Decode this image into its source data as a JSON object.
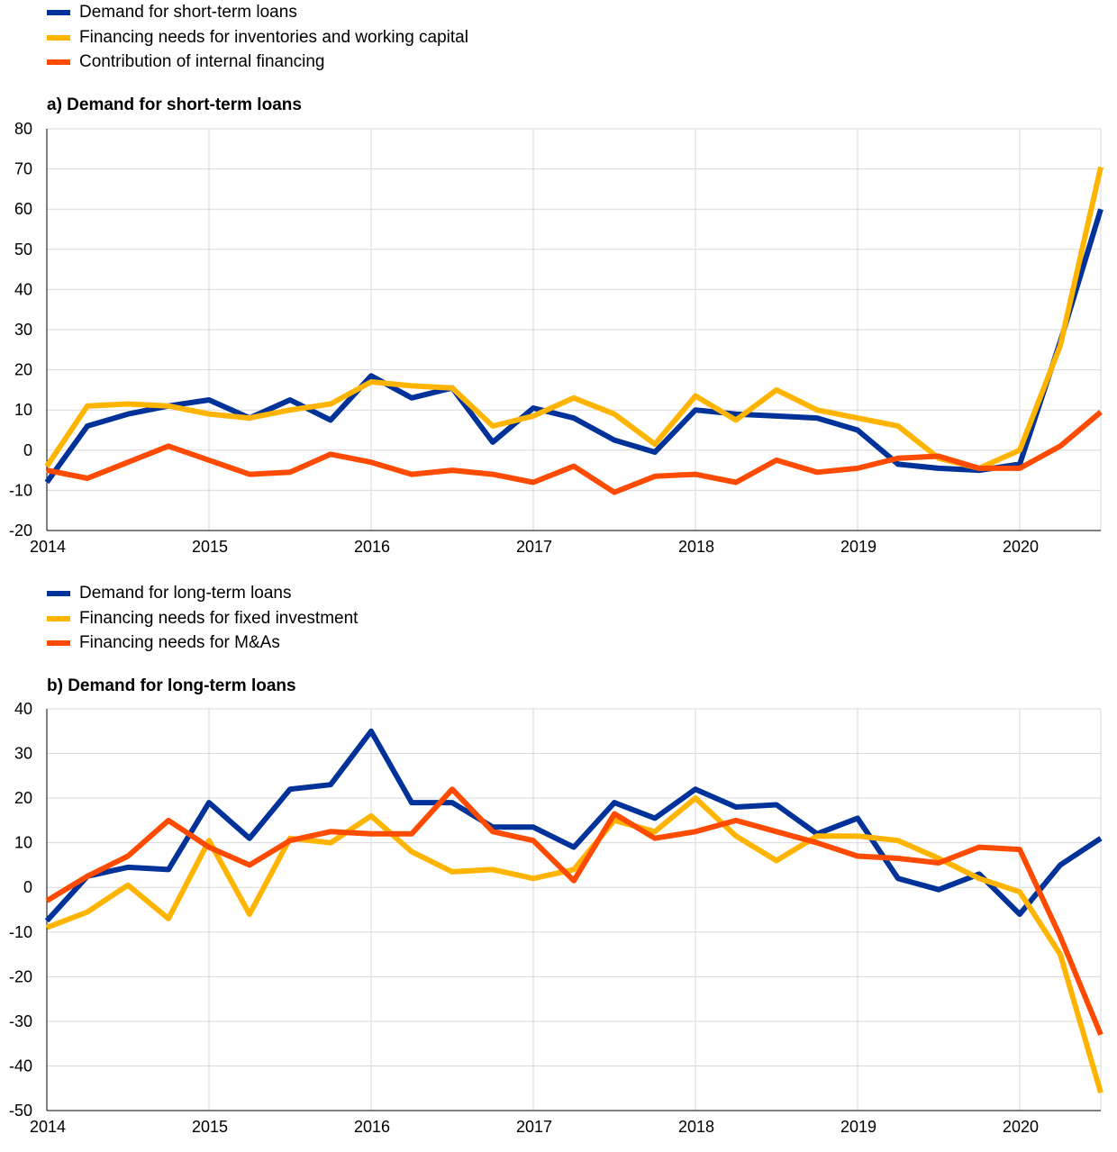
{
  "colors": {
    "blue": "#003299",
    "yellow": "#FFB400",
    "orange": "#FF4B00",
    "grid": "#D9D9D9",
    "axis": "#000000"
  },
  "chart_data": [
    {
      "type": "line",
      "title": "a) Demand for short-term loans",
      "x": [
        2014,
        2014.25,
        2014.5,
        2014.75,
        2015,
        2015.25,
        2015.5,
        2015.75,
        2016,
        2016.25,
        2016.5,
        2016.75,
        2017,
        2017.25,
        2017.5,
        2017.75,
        2018,
        2018.25,
        2018.5,
        2018.75,
        2019,
        2019.25,
        2019.5,
        2019.75,
        2020,
        2020.25,
        2020.5
      ],
      "x_ticks": [
        "2014",
        "2015",
        "2016",
        "2017",
        "2018",
        "2019",
        "2020"
      ],
      "ylim": [
        -20,
        80
      ],
      "y_ticks": [
        "80",
        "70",
        "60",
        "50",
        "40",
        "30",
        "20",
        "10",
        "0",
        "-10",
        "-20"
      ],
      "grid": true,
      "legend_position": "top",
      "series": [
        {
          "name": "Demand for short-term loans",
          "color": "#003299",
          "values": [
            -8,
            6,
            9,
            11,
            12.5,
            8,
            12.5,
            7.5,
            18.5,
            13,
            15.5,
            2,
            10.5,
            8,
            2.5,
            -0.5,
            10,
            9,
            8.5,
            8,
            5,
            -3.5,
            -4.5,
            -5,
            -3.5,
            27,
            60
          ]
        },
        {
          "name": "Financing needs for inventories and working capital",
          "color": "#FFB400",
          "values": [
            -4,
            11,
            11.5,
            11,
            9,
            8,
            10,
            11.5,
            17,
            16,
            15.5,
            6,
            8.5,
            13,
            9,
            1.5,
            13.5,
            7.5,
            15,
            10,
            8,
            6,
            -2,
            -4.5,
            0,
            26,
            70.5
          ]
        },
        {
          "name": "Contribution of internal financing",
          "color": "#FF4B00",
          "values": [
            -5,
            -7,
            -3,
            1,
            -2.5,
            -6,
            -5.5,
            -1,
            -3,
            -6,
            -5,
            -6,
            -8,
            -4,
            -10.5,
            -6.5,
            -6,
            -8,
            -2.5,
            -5.5,
            -4.5,
            -2,
            -1.5,
            -4.5,
            -4.5,
            1,
            9.5
          ]
        }
      ]
    },
    {
      "type": "line",
      "title": "b) Demand for long-term loans",
      "x": [
        2014,
        2014.25,
        2014.5,
        2014.75,
        2015,
        2015.25,
        2015.5,
        2015.75,
        2016,
        2016.25,
        2016.5,
        2016.75,
        2017,
        2017.25,
        2017.5,
        2017.75,
        2018,
        2018.25,
        2018.5,
        2018.75,
        2019,
        2019.25,
        2019.5,
        2019.75,
        2020,
        2020.25,
        2020.5
      ],
      "x_ticks": [
        "2014",
        "2015",
        "2016",
        "2017",
        "2018",
        "2019",
        "2020"
      ],
      "ylim": [
        -50,
        40
      ],
      "y_ticks": [
        "40",
        "30",
        "20",
        "10",
        "0",
        "-10",
        "-20",
        "-30",
        "-40",
        "-50"
      ],
      "grid": true,
      "legend_position": "top",
      "series": [
        {
          "name": "Demand for long-term loans",
          "color": "#003299",
          "values": [
            -7.5,
            2.5,
            4.5,
            4,
            19,
            11,
            22,
            23,
            35,
            19,
            19,
            13.5,
            13.5,
            9,
            19,
            15.5,
            22,
            18,
            18.5,
            12,
            15.5,
            2,
            -0.5,
            3,
            -6,
            5,
            11
          ]
        },
        {
          "name": "Financing needs for fixed investment",
          "color": "#FFB400",
          "values": [
            -9,
            -5.5,
            0.5,
            -7,
            10.5,
            -6,
            11,
            10,
            16,
            8,
            3.5,
            4,
            2,
            4,
            15,
            12.5,
            20,
            11.5,
            6,
            11.5,
            11.5,
            10.5,
            6.5,
            2,
            -1,
            -15,
            -46
          ]
        },
        {
          "name": "Financing needs for M&As",
          "color": "#FF4B00",
          "values": [
            -3,
            2.5,
            7,
            15,
            9,
            5,
            10.5,
            12.5,
            12,
            12,
            22,
            12.5,
            10.5,
            1.5,
            16.5,
            11,
            12.5,
            15,
            12.5,
            10,
            7,
            6.5,
            5.5,
            9,
            8.5,
            -11,
            -33
          ]
        }
      ]
    }
  ]
}
